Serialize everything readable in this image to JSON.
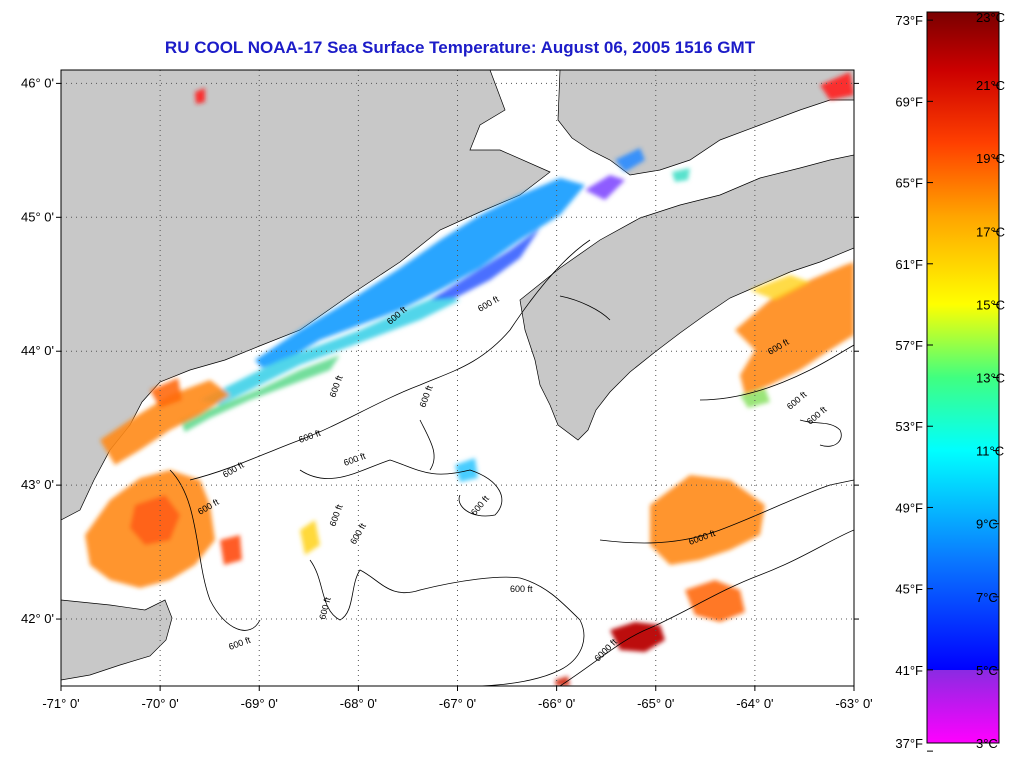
{
  "title": "RU COOL  NOAA-17  Sea Surface Temperature:  August 06, 2005 1516 GMT",
  "colors": {
    "land": "#c8c8c8",
    "ocean": "#ffffff",
    "title": "#1c1cc8",
    "grid": "#555555"
  },
  "map": {
    "lon_range": [
      -71,
      -63
    ],
    "lat_range": [
      41.5,
      46.1
    ],
    "lat_ticks": [
      {
        "value": 46,
        "label": "46° 0'"
      },
      {
        "value": 45,
        "label": "45° 0'"
      },
      {
        "value": 44,
        "label": "44° 0'"
      },
      {
        "value": 43,
        "label": "43° 0'"
      },
      {
        "value": 42,
        "label": "42° 0'"
      }
    ],
    "lon_ticks": [
      {
        "value": -71,
        "label": "-71° 0'"
      },
      {
        "value": -70,
        "label": "-70° 0'"
      },
      {
        "value": -69,
        "label": "-69° 0'"
      },
      {
        "value": -68,
        "label": "-68° 0'"
      },
      {
        "value": -67,
        "label": "-67° 0'"
      },
      {
        "value": -66,
        "label": "-66° 0'"
      },
      {
        "value": -65,
        "label": "-65° 0'"
      },
      {
        "value": -64,
        "label": "-64° 0'"
      },
      {
        "value": -63,
        "label": "-63° 0'"
      }
    ],
    "contour_labels": [
      "600 ft",
      "6000 ft"
    ]
  },
  "colorbar": {
    "celsius_range": [
      3,
      23
    ],
    "celsius_labels": [
      "23°C",
      "21°C",
      "19°C",
      "17°C",
      "15°C",
      "13°C",
      "11°C",
      "9°C",
      "7°C",
      "5°C",
      "3°C"
    ],
    "fahrenheit_labels": [
      "73°F",
      "69°F",
      "65°F",
      "61°F",
      "57°F",
      "53°F",
      "49°F",
      "45°F",
      "41°F",
      "37°F"
    ],
    "stops": [
      "#ff00ff",
      "#8a2be2",
      "#0000ff",
      "#0088ff",
      "#00ffff",
      "#40ff80",
      "#ffff00",
      "#ffa500",
      "#ff4000",
      "#cc0000",
      "#7a0000"
    ]
  }
}
